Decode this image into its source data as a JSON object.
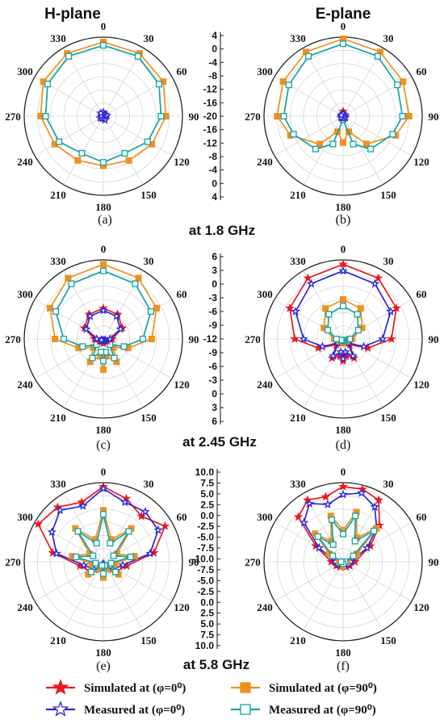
{
  "headers": [
    "H-plane",
    "E-plane"
  ],
  "angle_labels": [
    "0",
    "30",
    "60",
    "90",
    "120",
    "150",
    "180",
    "210",
    "240",
    "270",
    "300",
    "330"
  ],
  "scales": {
    "s1": {
      "ticks": [
        "4",
        "0",
        "-4",
        "-8",
        "-12",
        "-16",
        "-20",
        "-16",
        "-12",
        "-8",
        "-4",
        "0",
        "4"
      ]
    },
    "s2": {
      "ticks": [
        "6",
        "3",
        "0",
        "-3",
        "-6",
        "-9",
        "-12",
        "-9",
        "-6",
        "-3",
        "0",
        "3",
        "6"
      ]
    },
    "s3": {
      "ticks": [
        "10.0",
        "7.5",
        "5.0",
        "2.5",
        "0.0",
        "-2.5",
        "-5.0",
        "-7.5",
        "-10.0",
        "-7.5",
        "-5.0",
        "-2.5",
        "0.0",
        "2.5",
        "5.0",
        "7.5",
        "10.0"
      ]
    }
  },
  "frequencies": [
    "at 1.8 GHz",
    "at 2.45 GHz",
    "at 5.8 GHz"
  ],
  "panel_captions": [
    "(a)",
    "(b)",
    "(c)",
    "(d)",
    "(e)",
    "(f)"
  ],
  "legend": [
    {
      "label": "Simulated at (φ=0⁰)",
      "color": "#e8191f",
      "marker": "star-icon"
    },
    {
      "label": "Simulated at (φ=90⁰)",
      "color": "#f0901e",
      "marker": "square-icon"
    },
    {
      "label": "Measured at (φ=0⁰)",
      "color": "#2b27d4",
      "marker": "star-outline-icon"
    },
    {
      "label": "Measured at (φ=90⁰)",
      "color": "#12a3a1",
      "marker": "square-outline-icon"
    }
  ],
  "chart_data": [
    {
      "type": "polar",
      "panel": "(a)",
      "plane": "H-plane",
      "frequency": "at 1.8 GHz",
      "angle_labels_deg": [
        0,
        30,
        60,
        90,
        120,
        150,
        180,
        210,
        240,
        270,
        300,
        330
      ],
      "r_min": -20,
      "r_max": 4,
      "series": [
        {
          "name": "Simulated at (φ=90⁰)",
          "color": "#f0901e",
          "marker": "square",
          "theta": [
            0,
            30,
            60,
            90,
            120,
            150,
            180,
            210,
            240,
            270,
            300,
            330
          ],
          "r": [
            2.5,
            2,
            1,
            -1,
            -3,
            -4.5,
            -5,
            -4.5,
            -3,
            -1,
            1,
            2
          ]
        },
        {
          "name": "Measured at (φ=90⁰)",
          "color": "#12a3a1",
          "marker": "square-open",
          "theta": [
            0,
            30,
            60,
            90,
            120,
            150,
            180,
            210,
            240,
            270,
            300,
            330
          ],
          "r": [
            1.5,
            1,
            -0.5,
            -2.5,
            -4.5,
            -7,
            -6,
            -7,
            -4.5,
            -2.5,
            -0.5,
            1
          ]
        },
        {
          "name": "Simulated at (φ=0⁰)",
          "color": "#e8191f",
          "marker": "star",
          "theta": [
            0,
            45,
            90,
            135,
            180,
            225,
            270,
            315
          ],
          "r": [
            -19.5,
            -19.8,
            -19.5,
            -19.8,
            -19.5,
            -19.8,
            -19.5,
            -19.8
          ]
        },
        {
          "name": "Measured at (φ=0⁰)",
          "color": "#2b27d4",
          "marker": "star-open",
          "theta": [
            0,
            40,
            80,
            120,
            160,
            200,
            240,
            280,
            320
          ],
          "r": [
            -18.8,
            -19.3,
            -18.9,
            -19.4,
            -18.8,
            -19.3,
            -18.9,
            -19.4,
            -18.8
          ]
        }
      ]
    },
    {
      "type": "polar",
      "panel": "(b)",
      "plane": "E-plane",
      "frequency": "at 1.8 GHz",
      "angle_labels_deg": [
        0,
        30,
        60,
        90,
        120,
        150,
        180,
        210,
        240,
        270,
        300,
        330
      ],
      "r_min": -20,
      "r_max": 4,
      "series": [
        {
          "name": "Simulated at (φ=90⁰)",
          "color": "#f0901e",
          "marker": "square",
          "theta": [
            0,
            30,
            60,
            90,
            110,
            140,
            160,
            180,
            200,
            220,
            250,
            270,
            300,
            330
          ],
          "r": [
            3.5,
            2.5,
            1,
            0,
            -3,
            -9,
            -15,
            -12,
            -15,
            -9,
            -3,
            0,
            1,
            2.5
          ]
        },
        {
          "name": "Measured at (φ=90⁰)",
          "color": "#12a3a1",
          "marker": "square-open",
          "theta": [
            0,
            30,
            60,
            90,
            110,
            140,
            160,
            180,
            200,
            220,
            250,
            270,
            300,
            330
          ],
          "r": [
            2,
            1,
            -1,
            -2,
            -4,
            -7,
            -11,
            -19,
            -11,
            -7,
            -4,
            -2,
            -1,
            1
          ]
        },
        {
          "name": "Simulated at (φ=0⁰)",
          "color": "#e8191f",
          "marker": "star",
          "theta": [
            0,
            45,
            90,
            135,
            180,
            225,
            270,
            315
          ],
          "r": [
            -18.5,
            -19.5,
            -19.5,
            -19.5,
            -19.5,
            -19.5,
            -19.5,
            -19.5
          ]
        },
        {
          "name": "Measured at (φ=0⁰)",
          "color": "#2b27d4",
          "marker": "star-open",
          "theta": [
            0,
            60,
            120,
            180,
            240,
            300
          ],
          "r": [
            -19.2,
            -19.4,
            -19.2,
            -19.4,
            -19.2,
            -19.4
          ]
        }
      ]
    },
    {
      "type": "polar",
      "panel": "(c)",
      "plane": "H-plane",
      "frequency": "at 2.45 GHz",
      "angle_labels_deg": [
        0,
        30,
        60,
        90,
        120,
        150,
        180,
        210,
        240,
        270,
        300,
        330
      ],
      "r_min": -12,
      "r_max": 6,
      "series": [
        {
          "name": "Simulated at (φ=90⁰)",
          "color": "#f0901e",
          "marker": "square",
          "theta": [
            0,
            30,
            60,
            90,
            110,
            130,
            150,
            170,
            180,
            190,
            210,
            230,
            250,
            270,
            300,
            330
          ],
          "r": [
            5,
            4,
            2,
            -1,
            -6,
            -9,
            -6,
            -8,
            -5,
            -8,
            -6,
            -9,
            -6,
            -1,
            2,
            4
          ]
        },
        {
          "name": "Measured at (φ=90⁰)",
          "color": "#12a3a1",
          "marker": "square-open",
          "theta": [
            0,
            30,
            60,
            90,
            110,
            130,
            150,
            170,
            180,
            190,
            210,
            230,
            250,
            270,
            300,
            330
          ],
          "r": [
            3.5,
            2.5,
            0.5,
            -3,
            -7,
            -10,
            -7,
            -9,
            -7,
            -9,
            -7,
            -10,
            -7,
            -3,
            0.5,
            2.5
          ]
        },
        {
          "name": "Simulated at (φ=0⁰)",
          "color": "#e8191f",
          "marker": "star",
          "theta": [
            0,
            30,
            60,
            90,
            120,
            150,
            180,
            210,
            240,
            270,
            300,
            330
          ],
          "r": [
            -5,
            -5.5,
            -7,
            -10,
            -11,
            -11.5,
            -11,
            -11.5,
            -11,
            -10,
            -7,
            -5.5
          ]
        },
        {
          "name": "Measured at (φ=0⁰)",
          "color": "#2b27d4",
          "marker": "star-open",
          "theta": [
            0,
            30,
            60,
            90,
            120,
            150,
            180,
            210,
            240,
            270,
            300,
            330
          ],
          "r": [
            -5.5,
            -6,
            -7.5,
            -10.5,
            -11.5,
            -11.8,
            -11.5,
            -11.8,
            -11.5,
            -10.5,
            -7.5,
            -6
          ]
        }
      ]
    },
    {
      "type": "polar",
      "panel": "(d)",
      "plane": "E-plane",
      "frequency": "at 2.45 GHz",
      "angle_labels_deg": [
        0,
        30,
        60,
        90,
        120,
        150,
        180,
        210,
        240,
        270,
        300,
        330
      ],
      "r_min": -12,
      "r_max": 6,
      "series": [
        {
          "name": "Simulated at (φ=0⁰)",
          "color": "#e8191f",
          "marker": "star",
          "theta": [
            0,
            30,
            60,
            90,
            110,
            130,
            150,
            170,
            180,
            190,
            210,
            230,
            250,
            270,
            300,
            330
          ],
          "r": [
            5,
            4,
            2,
            -1,
            -6,
            -10,
            -7,
            -8,
            -7,
            -8,
            -7,
            -10,
            -6,
            -1,
            2,
            4
          ]
        },
        {
          "name": "Measured at (φ=0⁰)",
          "color": "#2b27d4",
          "marker": "star-open",
          "theta": [
            0,
            30,
            60,
            90,
            110,
            130,
            150,
            170,
            180,
            190,
            210,
            230,
            250,
            270,
            300,
            330
          ],
          "r": [
            3.5,
            2.5,
            0.5,
            -3,
            -7,
            -10.5,
            -7.5,
            -9,
            -7.5,
            -9,
            -7.5,
            -10.5,
            -7,
            -3,
            0.5,
            2.5
          ]
        },
        {
          "name": "Simulated at (φ=90⁰)",
          "color": "#f0901e",
          "marker": "square",
          "theta": [
            0,
            30,
            60,
            90,
            120,
            150,
            180,
            210,
            240,
            270,
            300,
            330
          ],
          "r": [
            -3,
            -4,
            -7,
            -10,
            -11,
            -11.5,
            -11,
            -11.5,
            -11,
            -10,
            -7,
            -4
          ]
        },
        {
          "name": "Measured at (φ=90⁰)",
          "color": "#12a3a1",
          "marker": "square-open",
          "theta": [
            0,
            30,
            60,
            90,
            120,
            150,
            180,
            210,
            240,
            270,
            300,
            330
          ],
          "r": [
            -4.5,
            -5.5,
            -8,
            -10.5,
            -11.5,
            -11.8,
            -11.5,
            -11.8,
            -11.5,
            -10.5,
            -8,
            -5.5
          ]
        }
      ]
    },
    {
      "type": "polar",
      "panel": "(e)",
      "plane": "H-plane",
      "frequency": "at 5.8 GHz",
      "angle_labels_deg": [
        0,
        30,
        60,
        90,
        120,
        150,
        180,
        210,
        240,
        270,
        300,
        330
      ],
      "r_min": -10,
      "r_max": 10,
      "series": [
        {
          "name": "Simulated at (φ=0⁰)",
          "color": "#e8191f",
          "marker": "star",
          "theta": [
            0,
            20,
            40,
            60,
            80,
            100,
            130,
            160,
            180,
            200,
            230,
            260,
            280,
            300,
            320,
            340
          ],
          "r": [
            9,
            7,
            5,
            8,
            3,
            -4,
            -6,
            -8,
            -9,
            -8,
            -6,
            -4,
            3,
            9,
            8,
            6
          ]
        },
        {
          "name": "Measured at (φ=0⁰)",
          "color": "#2b27d4",
          "marker": "star-open",
          "theta": [
            0,
            20,
            40,
            60,
            80,
            100,
            130,
            160,
            180,
            200,
            230,
            260,
            280,
            300,
            320,
            340
          ],
          "r": [
            8.5,
            6,
            6.5,
            6,
            2,
            -5,
            -7,
            -9,
            -9.5,
            -9,
            -7,
            -5,
            2,
            5,
            7,
            5
          ]
        },
        {
          "name": "Simulated at (φ=90⁰)",
          "color": "#f0901e",
          "marker": "square",
          "theta": [
            0,
            20,
            40,
            60,
            80,
            100,
            130,
            160,
            180,
            200,
            230,
            260,
            280,
            300,
            320,
            340
          ],
          "r": [
            3,
            -4,
            1,
            -6,
            -2,
            -7,
            -5,
            -8,
            -6,
            -8,
            -5,
            -7,
            -2,
            -6,
            1,
            -4
          ]
        },
        {
          "name": "Measured at (φ=90⁰)",
          "color": "#12a3a1",
          "marker": "square-open",
          "theta": [
            0,
            20,
            40,
            60,
            80,
            100,
            130,
            160,
            180,
            200,
            230,
            260,
            280,
            300,
            320,
            340
          ],
          "r": [
            2,
            -5,
            0,
            -7,
            -3,
            -8,
            -6,
            -9,
            -7,
            -9,
            -6,
            -8,
            -3,
            -7,
            0,
            -5
          ]
        }
      ]
    },
    {
      "type": "polar",
      "panel": "(f)",
      "plane": "E-plane",
      "frequency": "at 5.8 GHz",
      "angle_labels_deg": [
        0,
        30,
        60,
        90,
        120,
        150,
        180,
        210,
        240,
        270,
        300,
        330
      ],
      "r_min": -10,
      "r_max": 10,
      "series": [
        {
          "name": "Simulated at (φ=0⁰)",
          "color": "#e8191f",
          "marker": "star",
          "theta": [
            0,
            15,
            30,
            45,
            60,
            90,
            120,
            150,
            180,
            210,
            240,
            270,
            300,
            315,
            330,
            345
          ],
          "r": [
            9,
            9,
            8,
            3,
            -2,
            -7,
            -8,
            -8.5,
            -9,
            -8.5,
            -8,
            -7,
            -2,
            6,
            8,
            7
          ]
        },
        {
          "name": "Measured at (φ=0⁰)",
          "color": "#2b27d4",
          "marker": "star-open",
          "theta": [
            0,
            15,
            30,
            45,
            60,
            90,
            120,
            150,
            180,
            210,
            240,
            270,
            300,
            315,
            330,
            345
          ],
          "r": [
            7,
            8,
            6,
            2,
            -3,
            -8,
            -8.5,
            -9,
            -9.5,
            -9,
            -8.5,
            -8,
            -3,
            4,
            7,
            5
          ]
        },
        {
          "name": "Simulated at (φ=90⁰)",
          "color": "#f0901e",
          "marker": "square",
          "theta": [
            0,
            15,
            30,
            45,
            60,
            90,
            180,
            270,
            300,
            315,
            330,
            345
          ],
          "r": [
            -2,
            3,
            -3,
            2,
            -6,
            -9,
            -9,
            -9,
            -6,
            0,
            -4,
            2
          ]
        },
        {
          "name": "Measured at (φ=90⁰)",
          "color": "#12a3a1",
          "marker": "square-open",
          "theta": [
            0,
            15,
            30,
            45,
            60,
            90,
            180,
            270,
            300,
            315,
            330,
            345
          ],
          "r": [
            -3,
            2,
            -4,
            1,
            -7,
            -9.5,
            -9.5,
            -9.5,
            -7,
            -1,
            -5,
            1
          ]
        }
      ]
    }
  ]
}
